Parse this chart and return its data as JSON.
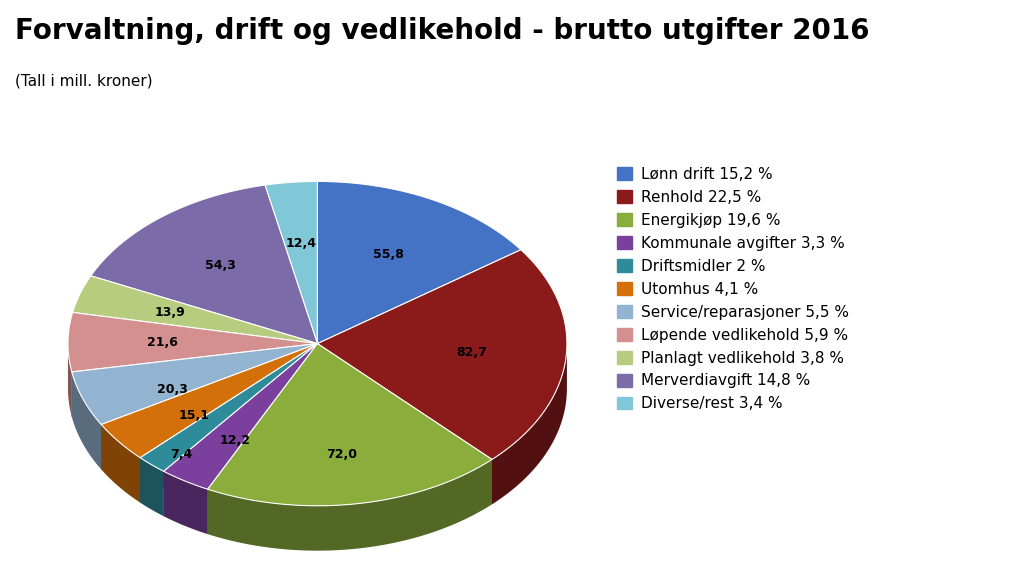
{
  "title": "Forvaltning, drift og vedlikehold - brutto utgifter 2016",
  "subtitle": "(Tall i mill. kroner)",
  "values": [
    55.8,
    82.7,
    72.0,
    12.2,
    7.4,
    15.1,
    20.3,
    21.6,
    13.9,
    54.3,
    12.4
  ],
  "labels": [
    "55,8",
    "82,7",
    "72,0",
    "12,2",
    "7,4",
    "15,1",
    "20,3",
    "21,6",
    "13,9",
    "54,3",
    "12,4"
  ],
  "legend_labels": [
    "Lønn drift 15,2 %",
    "Renhold 22,5 %",
    "Energikjøp 19,6 %",
    "Kommunale avgifter 3,3 %",
    "Driftsmidler 2 %",
    "Utomhus 4,1 %",
    "Service/reparasjoner 5,5 %",
    "Løpende vedlikehold 5,9 %",
    "Planlagt vedlikehold 3,8 %",
    "Merverdiavgift 14,8 %",
    "Diverse/rest 3,4 %"
  ],
  "colors": [
    "#4472C4",
    "#8B1A1A",
    "#8AAD3C",
    "#7B3F9E",
    "#2E8B9A",
    "#D4700A",
    "#92B4D0",
    "#D4908E",
    "#B8CC80",
    "#7B6BA8",
    "#80C8D8"
  ],
  "background_color": "#FFFFFF",
  "title_fontsize": 20,
  "subtitle_fontsize": 11,
  "legend_fontsize": 11
}
